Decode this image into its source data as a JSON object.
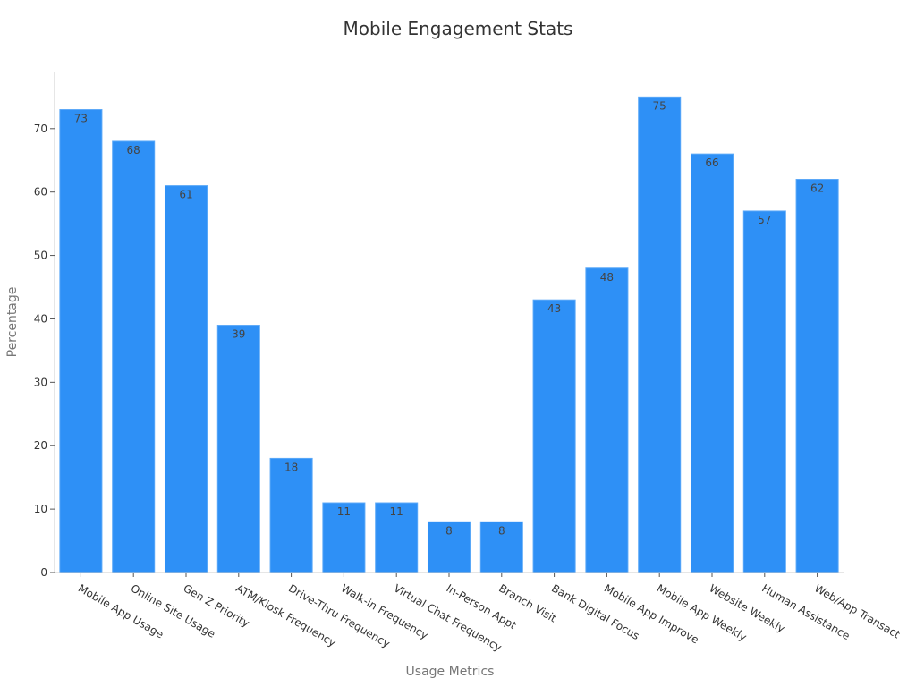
{
  "chart_data": {
    "type": "bar",
    "title": "Mobile Engagement Stats",
    "xlabel": "Usage Metrics",
    "ylabel": "Percentage",
    "categories": [
      "Mobile App Usage",
      "Online Site Usage",
      "Gen Z Priority",
      "ATM/Kiosk Frequency",
      "Drive-Thru Frequency",
      "Walk-in Frequency",
      "Virtual Chat Frequency",
      "In-Person Appt",
      "Branch Visit",
      "Bank Digital Focus",
      "Mobile App Improve",
      "Mobile App Weekly",
      "Website Weekly",
      "Human Assistance",
      "Web/App Transact"
    ],
    "values": [
      73,
      68,
      61,
      39,
      18,
      11,
      11,
      8,
      8,
      43,
      48,
      75,
      66,
      57,
      62
    ],
    "ylim": [
      0,
      79
    ],
    "yticks": [
      0,
      10,
      20,
      30,
      40,
      50,
      60,
      70
    ],
    "grid": false,
    "bar_color": "#2e90f6"
  }
}
